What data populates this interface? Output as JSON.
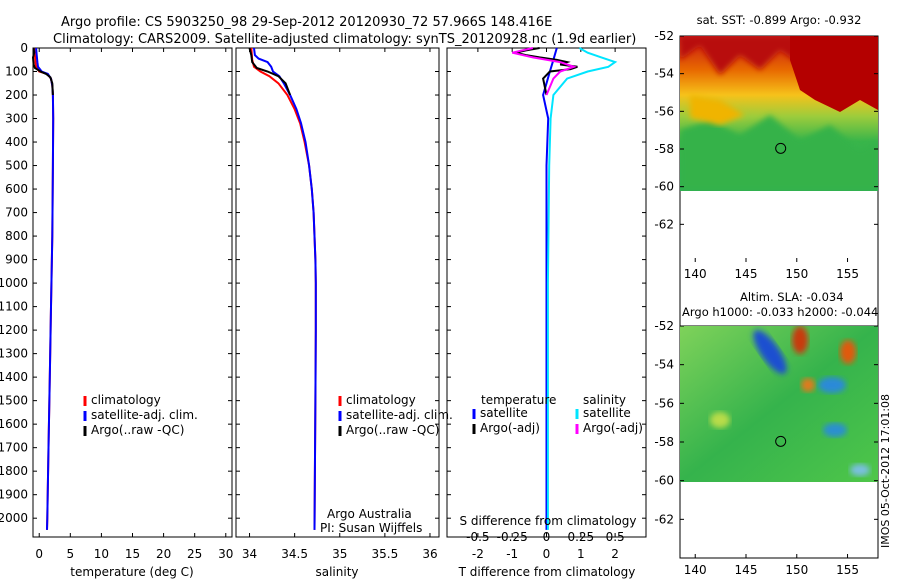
{
  "figure": {
    "title_line1": "Argo profile: CS 5903250_98 29-Sep-2012 20120930_72 57.966S 148.416E",
    "title_line2": "Climatology: CARS2009. Satellite-adjusted climatology: synTS_20120928.nc (1.9d earlier)",
    "watermark": "IMOS 05-Oct-2012 17:01:08",
    "credit_line1": "Argo Australia",
    "credit_line2": "PI: Susan Wijffels"
  },
  "colors": {
    "climatology": "#ff0000",
    "satellite": "#0000ff",
    "argo": "#000000",
    "sal_satellite": "#00e5ff",
    "sal_argo": "#ff00ff"
  },
  "chart_data": [
    {
      "type": "line",
      "id": "temperature",
      "title": "",
      "xlabel": "temperature (deg C)",
      "ylabel": "",
      "xlim": [
        -1,
        31
      ],
      "ylim": [
        2080,
        0
      ],
      "xticks": [
        0,
        5,
        10,
        15,
        20,
        25,
        30
      ],
      "yticks": [
        0,
        100,
        200,
        300,
        400,
        500,
        600,
        700,
        800,
        900,
        1000,
        1100,
        1200,
        1300,
        1400,
        1500,
        1600,
        1700,
        1800,
        1900,
        2000
      ],
      "legend": [
        "climatology",
        "satellite-adj. clim.",
        "Argo(..raw -QC)"
      ],
      "legend_position": "lower-middle",
      "series": [
        {
          "name": "climatology",
          "color": "#ff0000",
          "points": [
            [
              -0.8,
              0
            ],
            [
              -0.7,
              30
            ],
            [
              -0.6,
              60
            ],
            [
              -0.5,
              80
            ],
            [
              0.0,
              100
            ],
            [
              1.3,
              110
            ],
            [
              1.9,
              130
            ],
            [
              2.1,
              160
            ],
            [
              2.2,
              200
            ],
            [
              2.25,
              300
            ],
            [
              2.2,
              500
            ],
            [
              2.1,
              800
            ],
            [
              1.9,
              1100
            ],
            [
              1.7,
              1400
            ],
            [
              1.5,
              1700
            ],
            [
              1.3,
              2000
            ],
            [
              1.25,
              2050
            ]
          ]
        },
        {
          "name": "satellite-adj. clim.",
          "color": "#0000ff",
          "points": [
            [
              -0.5,
              0
            ],
            [
              -0.4,
              30
            ],
            [
              -0.3,
              60
            ],
            [
              -0.2,
              80
            ],
            [
              0.4,
              100
            ],
            [
              1.4,
              110
            ],
            [
              1.9,
              130
            ],
            [
              2.1,
              160
            ],
            [
              2.2,
              200
            ],
            [
              2.25,
              300
            ],
            [
              2.2,
              500
            ],
            [
              2.1,
              800
            ],
            [
              1.9,
              1100
            ],
            [
              1.7,
              1400
            ],
            [
              1.5,
              1700
            ],
            [
              1.3,
              2000
            ],
            [
              1.25,
              2050
            ]
          ]
        },
        {
          "name": "Argo(..raw -QC)",
          "color": "#000000",
          "points": [
            [
              -0.9,
              0
            ],
            [
              -0.8,
              20
            ],
            [
              -1.0,
              40
            ],
            [
              -0.9,
              70
            ],
            [
              -0.7,
              85
            ],
            [
              0.2,
              100
            ],
            [
              1.1,
              110
            ],
            [
              1.8,
              125
            ],
            [
              2.1,
              150
            ],
            [
              2.2,
              200
            ]
          ]
        }
      ]
    },
    {
      "type": "line",
      "id": "salinity",
      "title": "",
      "xlabel": "salinity",
      "ylabel": "",
      "xlim": [
        33.85,
        36.1
      ],
      "ylim": [
        2080,
        0
      ],
      "xticks": [
        34,
        34.5,
        35,
        35.5,
        36
      ],
      "xtick_labels": [
        "34",
        "34.5",
        "35",
        "35.5",
        "36"
      ],
      "legend": [
        "climatology",
        "satellite-adj. clim.",
        "Argo(..raw -QC)"
      ],
      "legend_position": "lower-middle",
      "series": [
        {
          "name": "climatology",
          "color": "#ff0000",
          "points": [
            [
              34.02,
              0
            ],
            [
              34.03,
              50
            ],
            [
              34.05,
              80
            ],
            [
              34.12,
              100
            ],
            [
              34.22,
              120
            ],
            [
              34.32,
              150
            ],
            [
              34.42,
              200
            ],
            [
              34.5,
              260
            ],
            [
              34.56,
              320
            ],
            [
              34.61,
              400
            ],
            [
              34.66,
              500
            ],
            [
              34.69,
              600
            ],
            [
              34.71,
              700
            ],
            [
              34.72,
              800
            ],
            [
              34.73,
              900
            ],
            [
              34.735,
              1000
            ],
            [
              34.735,
              1200
            ],
            [
              34.73,
              1500
            ],
            [
              34.725,
              1800
            ],
            [
              34.72,
              2050
            ]
          ]
        },
        {
          "name": "satellite-adj. clim.",
          "color": "#0000ff",
          "points": [
            [
              34.05,
              0
            ],
            [
              34.06,
              30
            ],
            [
              34.1,
              45
            ],
            [
              34.2,
              60
            ],
            [
              34.24,
              80
            ],
            [
              34.26,
              100
            ],
            [
              34.33,
              120
            ],
            [
              34.38,
              150
            ],
            [
              34.45,
              200
            ],
            [
              34.52,
              260
            ],
            [
              34.57,
              320
            ],
            [
              34.62,
              400
            ],
            [
              34.66,
              500
            ],
            [
              34.69,
              600
            ],
            [
              34.71,
              700
            ],
            [
              34.72,
              800
            ],
            [
              34.73,
              900
            ],
            [
              34.735,
              1000
            ],
            [
              34.735,
              1200
            ],
            [
              34.73,
              1500
            ],
            [
              34.725,
              1800
            ],
            [
              34.72,
              2050
            ]
          ]
        },
        {
          "name": "Argo(..raw -QC)",
          "color": "#000000",
          "points": [
            [
              34.0,
              0
            ],
            [
              34.02,
              30
            ],
            [
              34.03,
              60
            ],
            [
              34.08,
              85
            ],
            [
              34.2,
              100
            ],
            [
              34.32,
              120
            ],
            [
              34.4,
              150
            ],
            [
              34.45,
              200
            ]
          ]
        }
      ]
    },
    {
      "type": "line",
      "id": "difference",
      "title": "",
      "xlabel": "T difference from climatology",
      "x2label": "S difference from climatology",
      "ylabel": "",
      "xlim": [
        -2.9,
        2.9
      ],
      "ylim": [
        2080,
        0
      ],
      "xticks": [
        -2,
        -1,
        0,
        1,
        2
      ],
      "x2ticks": [
        -0.5,
        -0.25,
        0,
        0.25,
        0.5
      ],
      "x2tick_labels": [
        "-0.5",
        "-0.25",
        "0",
        "0.25",
        "0.5"
      ],
      "legend": [
        "temperature",
        "salinity",
        "satellite",
        "Argo(-adj)",
        "satellite",
        "Argo(-adj)"
      ],
      "legend_position": "lower-middle",
      "series": [
        {
          "name": "temperature satellite",
          "color": "#0000ff",
          "points": [
            [
              0.3,
              0
            ],
            [
              0.2,
              50
            ],
            [
              0.1,
              100
            ],
            [
              0.0,
              150
            ],
            [
              -0.1,
              200
            ],
            [
              0.05,
              300
            ],
            [
              0.0,
              500
            ],
            [
              0.0,
              2050
            ]
          ]
        },
        {
          "name": "temperature Argo(-adj)",
          "color": "#000000",
          "points": [
            [
              -0.2,
              0
            ],
            [
              -0.6,
              10
            ],
            [
              -0.9,
              20
            ],
            [
              -0.6,
              30
            ],
            [
              -0.2,
              40
            ],
            [
              0.3,
              50
            ],
            [
              0.6,
              60
            ],
            [
              0.4,
              70
            ],
            [
              0.9,
              80
            ],
            [
              0.7,
              90
            ],
            [
              0.1,
              100
            ],
            [
              -0.1,
              130
            ],
            [
              0.0,
              200
            ]
          ]
        },
        {
          "name": "salinity satellite",
          "color": "#00e5ff",
          "points": [
            [
              0.24,
              0
            ],
            [
              0.3,
              20
            ],
            [
              0.4,
              40
            ],
            [
              0.5,
              60
            ],
            [
              0.45,
              80
            ],
            [
              0.3,
              100
            ],
            [
              0.15,
              130
            ],
            [
              0.05,
              200
            ],
            [
              0.03,
              300
            ],
            [
              0.02,
              500
            ],
            [
              0.01,
              1000
            ],
            [
              0.01,
              2050
            ]
          ]
        },
        {
          "name": "salinity Argo(-adj)",
          "color": "#ff00ff",
          "points": [
            [
              -0.1,
              0
            ],
            [
              -0.25,
              20
            ],
            [
              -0.1,
              40
            ],
            [
              0.1,
              60
            ],
            [
              0.2,
              80
            ],
            [
              0.1,
              100
            ],
            [
              0.05,
              130
            ],
            [
              0.0,
              200
            ]
          ]
        }
      ]
    },
    {
      "type": "heatmap",
      "id": "sst-map",
      "title": "sat. SST: -0.899 Argo: -0.932",
      "xlabel": "",
      "ylabel": "",
      "xlim": [
        138.5,
        158
      ],
      "ylim": [
        -64,
        -52
      ],
      "xticks": [
        140,
        145,
        150,
        155
      ],
      "yticks": [
        -52,
        -54,
        -56,
        -58,
        -60,
        -62
      ],
      "marker": {
        "lon": 148.416,
        "lat": -57.966
      },
      "data_extent_lat": [
        -60.2,
        -52
      ]
    },
    {
      "type": "heatmap",
      "id": "sla-map",
      "title": "Altim. SLA: -0.034",
      "subtitle": "Argo h1000: -0.033 h2000: -0.044",
      "xlabel": "",
      "ylabel": "",
      "xlim": [
        138.5,
        158
      ],
      "ylim": [
        -64,
        -52
      ],
      "xticks": [
        140,
        145,
        150,
        155
      ],
      "yticks": [
        -52,
        -54,
        -56,
        -58,
        -60,
        -62
      ],
      "marker": {
        "lon": 148.416,
        "lat": -57.966
      },
      "data_extent_lat": [
        -60.2,
        -52
      ]
    }
  ]
}
